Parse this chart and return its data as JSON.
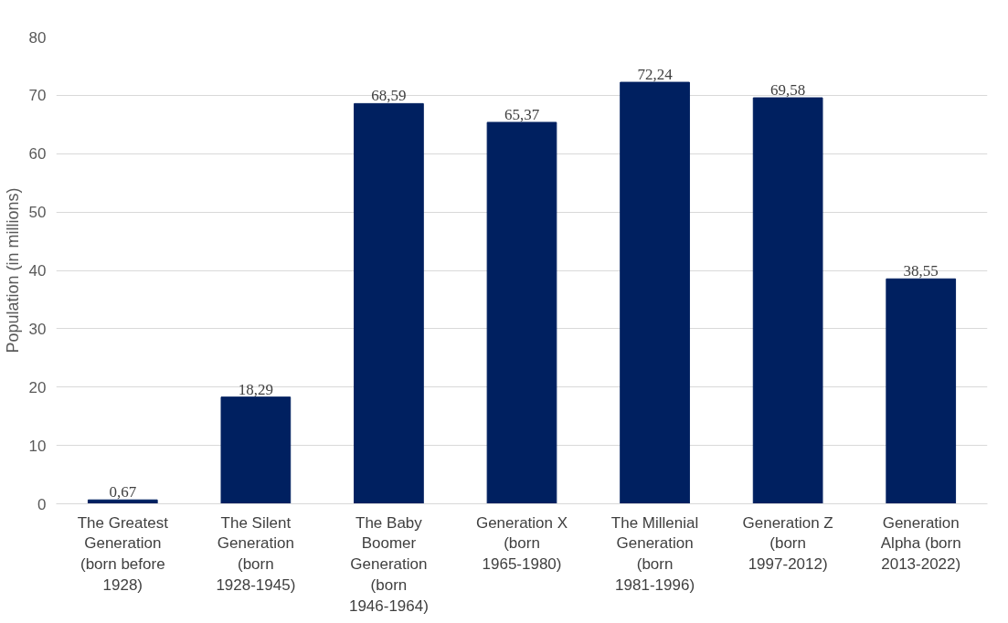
{
  "chart_data": {
    "type": "bar",
    "ylabel": "Population (in millions)",
    "categories": [
      "The Greatest Generation (born before 1928)",
      "The Silent Generation (born 1928-1945)",
      "The Baby Boomer Generation (born 1946-1964)",
      "Generation X (born 1965-1980)",
      "The Millenial Generation (born 1981-1996)",
      "Generation Z (born 1997-2012)",
      "Generation Alpha (born 2013-2022)"
    ],
    "values": [
      0.67,
      18.29,
      68.59,
      65.37,
      72.24,
      69.58,
      38.55
    ],
    "value_labels": [
      "0,67",
      "18,29",
      "68,59",
      "65,37",
      "72,24",
      "69,58",
      "38,55"
    ],
    "color": "#002060",
    "ylim": [
      0,
      80
    ],
    "yticks": [
      0,
      10,
      20,
      30,
      40,
      50,
      60,
      70,
      80
    ],
    "grid": "y"
  }
}
